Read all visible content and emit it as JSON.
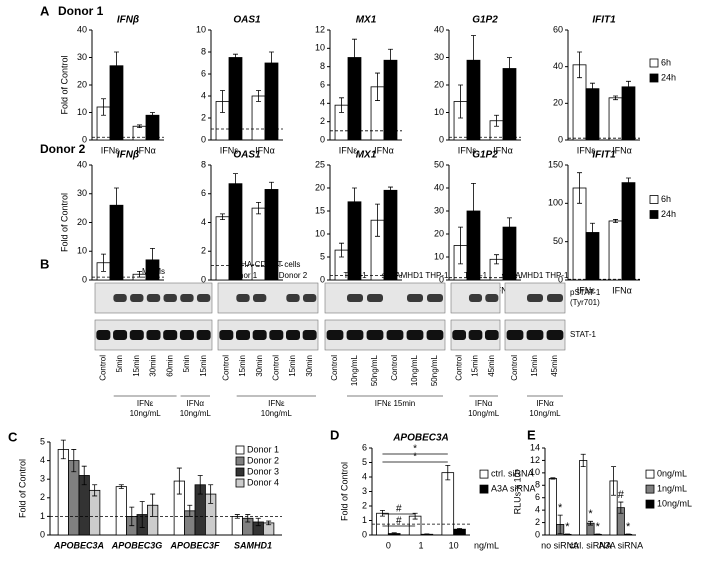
{
  "figure": {
    "panel_letters": [
      "A",
      "B",
      "C",
      "D",
      "E"
    ],
    "donors": [
      "Donor 1",
      "Donor 2"
    ]
  },
  "blot": {
    "row_labels": [
      "pSTAT-1",
      "(Tyr701)",
      "STAT-1"
    ],
    "panels": [
      {
        "title": "MDMs",
        "subgroups": [],
        "lanes": [
          "Control",
          "5min",
          "15min",
          "30min",
          "60min",
          "5min",
          "15min"
        ],
        "groups": [
          [
            "IFNε",
            "10ng/mL"
          ],
          [
            "IFNα",
            "10ng/mL"
          ]
        ]
      },
      {
        "title": "PHA-CD4+ T cells",
        "subgroups": [
          "Donor 1",
          "Donor 2"
        ],
        "lanes": [
          "Control",
          "15min",
          "30min",
          "Control",
          "15min",
          "30min"
        ],
        "groups": [
          [
            "IFNε",
            "10ng/mL"
          ]
        ]
      },
      {
        "title": "",
        "subgroups": [
          "THP-1",
          "shSAMHD1 THP-1"
        ],
        "lanes": [
          "Control",
          "10ng/mL",
          "50ng/mL",
          "Control",
          "10ng/mL",
          "50ng/mL"
        ],
        "groups": [
          [
            "IFNε 15min"
          ]
        ]
      },
      {
        "title": "",
        "subgroups": [
          "THP-1"
        ],
        "lanes": [
          "Control",
          "15min",
          "45min"
        ],
        "groups": [
          [
            "IFNα",
            "10ng/mL"
          ]
        ]
      },
      {
        "title": "",
        "subgroups": [
          "shSAMHD1 THP-1"
        ],
        "lanes": [
          "Control",
          "15min",
          "45min"
        ],
        "groups": [
          [
            "IFNα",
            "10ng/mL"
          ]
        ]
      }
    ]
  },
  "chart_data": [
    {
      "type": "bar",
      "title": "IFNβ",
      "ylabel": "Fold of Control",
      "categories": [
        "IFNε",
        "IFNα"
      ],
      "ylim": [
        0,
        40
      ],
      "yticks": [
        0,
        10,
        20,
        30,
        40
      ],
      "reference_line": 1,
      "series": [
        {
          "name": "6h",
          "color": "#ffffff",
          "values": [
            12,
            5
          ],
          "errors": [
            3,
            0.5
          ]
        },
        {
          "name": "24h",
          "color": "#000000",
          "values": [
            27,
            9
          ],
          "errors": [
            5,
            1
          ]
        }
      ]
    },
    {
      "type": "bar",
      "title": "OAS1",
      "categories": [
        "IFNε",
        "IFNα"
      ],
      "ylim": [
        0,
        10
      ],
      "yticks": [
        0,
        2,
        4,
        6,
        8,
        10
      ],
      "reference_line": 1,
      "series": [
        {
          "name": "6h",
          "color": "#ffffff",
          "values": [
            3.5,
            4
          ],
          "errors": [
            1,
            0.5
          ]
        },
        {
          "name": "24h",
          "color": "#000000",
          "values": [
            7.5,
            7
          ],
          "errors": [
            0.3,
            1
          ]
        }
      ]
    },
    {
      "type": "bar",
      "title": "MX1",
      "categories": [
        "IFNε",
        "IFNα"
      ],
      "ylim": [
        0,
        12
      ],
      "yticks": [
        0,
        2,
        4,
        6,
        8,
        10,
        12
      ],
      "reference_line": 1,
      "series": [
        {
          "name": "6h",
          "color": "#ffffff",
          "values": [
            3.8,
            5.8
          ],
          "errors": [
            0.8,
            1.5
          ]
        },
        {
          "name": "24h",
          "color": "#000000",
          "values": [
            9,
            8.7
          ],
          "errors": [
            2,
            1.2
          ]
        }
      ]
    },
    {
      "type": "bar",
      "title": "G1P2",
      "categories": [
        "IFNε",
        "IFNα"
      ],
      "ylim": [
        0,
        40
      ],
      "yticks": [
        0,
        10,
        20,
        30,
        40
      ],
      "reference_line": 1,
      "series": [
        {
          "name": "6h",
          "color": "#ffffff",
          "values": [
            14,
            7
          ],
          "errors": [
            6,
            2
          ]
        },
        {
          "name": "24h",
          "color": "#000000",
          "values": [
            29,
            26
          ],
          "errors": [
            9,
            4
          ]
        }
      ]
    },
    {
      "type": "bar",
      "title": "IFIT1",
      "categories": [
        "IFNε",
        "IFNα"
      ],
      "ylim": [
        0,
        60
      ],
      "yticks": [
        0,
        20,
        40,
        60
      ],
      "reference_line": 1,
      "legend": "right",
      "series": [
        {
          "name": "6h",
          "color": "#ffffff",
          "values": [
            41,
            23
          ],
          "errors": [
            7,
            1
          ]
        },
        {
          "name": "24h",
          "color": "#000000",
          "values": [
            28,
            29
          ],
          "errors": [
            3,
            3
          ]
        }
      ]
    },
    {
      "type": "bar",
      "title": "IFNβ",
      "ylabel": "Fold of Control",
      "categories": [
        "IFNε",
        "IFNα"
      ],
      "ylim": [
        0,
        40
      ],
      "yticks": [
        0,
        10,
        20,
        30,
        40
      ],
      "reference_line": 1,
      "series": [
        {
          "name": "6h",
          "color": "#ffffff",
          "values": [
            6,
            2
          ],
          "errors": [
            3,
            1
          ]
        },
        {
          "name": "24h",
          "color": "#000000",
          "values": [
            26,
            7
          ],
          "errors": [
            6,
            4
          ]
        }
      ]
    },
    {
      "type": "bar",
      "title": "OAS1",
      "categories": [
        "IFNε",
        "IFNα"
      ],
      "ylim": [
        0,
        8
      ],
      "yticks": [
        0,
        2,
        4,
        6,
        8
      ],
      "reference_line": 1,
      "series": [
        {
          "name": "6h",
          "color": "#ffffff",
          "values": [
            4.4,
            5
          ],
          "errors": [
            0.2,
            0.4
          ]
        },
        {
          "name": "24h",
          "color": "#000000",
          "values": [
            6.7,
            6.3
          ],
          "errors": [
            0.7,
            0.5
          ]
        }
      ]
    },
    {
      "type": "bar",
      "title": "MX1",
      "categories": [
        "IFNε",
        "IFNα"
      ],
      "ylim": [
        0,
        25
      ],
      "yticks": [
        0,
        5,
        10,
        15,
        20,
        25
      ],
      "reference_line": 1,
      "series": [
        {
          "name": "6h",
          "color": "#ffffff",
          "values": [
            6.5,
            13
          ],
          "errors": [
            1.5,
            3.5
          ]
        },
        {
          "name": "24h",
          "color": "#000000",
          "values": [
            17,
            19.5
          ],
          "errors": [
            3,
            0.7
          ]
        }
      ]
    },
    {
      "type": "bar",
      "title": "G1P2",
      "categories": [
        "IFNε",
        "IFNα"
      ],
      "ylim": [
        0,
        50
      ],
      "yticks": [
        0,
        10,
        20,
        30,
        40,
        50
      ],
      "reference_line": 1,
      "series": [
        {
          "name": "6h",
          "color": "#ffffff",
          "values": [
            15,
            9
          ],
          "errors": [
            8,
            2
          ]
        },
        {
          "name": "24h",
          "color": "#000000",
          "values": [
            30,
            23
          ],
          "errors": [
            12,
            4
          ]
        }
      ]
    },
    {
      "type": "bar",
      "title": "IFIT1",
      "categories": [
        "IFNε",
        "IFNα"
      ],
      "ylim": [
        0,
        150
      ],
      "yticks": [
        0,
        50,
        100,
        150
      ],
      "reference_line": 1,
      "legend": "right",
      "series": [
        {
          "name": "6h",
          "color": "#ffffff",
          "values": [
            120,
            77
          ],
          "errors": [
            20,
            2
          ]
        },
        {
          "name": "24h",
          "color": "#000000",
          "values": [
            62,
            127
          ],
          "errors": [
            12,
            6
          ]
        }
      ]
    },
    {
      "type": "bar",
      "ylabel": "Fold of Control",
      "categories": [
        "APOBEC3A",
        "APOBEC3G",
        "APOBEC3F",
        "SAMHD1"
      ],
      "ylim": [
        0,
        5
      ],
      "yticks": [
        0,
        1,
        2,
        3,
        4,
        5
      ],
      "reference_line": 1,
      "legend": "upper right",
      "series": [
        {
          "name": "Donor 1",
          "color": "#ffffff",
          "values": [
            4.6,
            2.6,
            2.9,
            1.0
          ],
          "errors": [
            0.5,
            0.1,
            0.7,
            0.1
          ]
        },
        {
          "name": "Donor 2",
          "color": "#808080",
          "values": [
            4.0,
            1.0,
            1.3,
            0.9
          ],
          "errors": [
            0.6,
            0.5,
            0.3,
            0.2
          ]
        },
        {
          "name": "Donor 3",
          "color": "#333333",
          "values": [
            3.2,
            1.1,
            2.7,
            0.7
          ],
          "errors": [
            0.5,
            0.7,
            0.5,
            0.2
          ]
        },
        {
          "name": "Donor 4",
          "color": "#cccccc",
          "values": [
            2.4,
            1.6,
            2.2,
            0.65
          ],
          "errors": [
            0.3,
            0.6,
            0.5,
            0.1
          ]
        }
      ]
    },
    {
      "type": "bar",
      "title": "APOBEC3A",
      "ylabel": "Fold of Control",
      "xlabel": "ng/mL",
      "categories": [
        "0",
        "1",
        "10"
      ],
      "ylim": [
        0,
        6
      ],
      "yticks": [
        0,
        1,
        2,
        3,
        4,
        5,
        6
      ],
      "reference_line": 0.75,
      "legend": "right",
      "series": [
        {
          "name": "ctrl. siRNA",
          "color": "#ffffff",
          "values": [
            1.5,
            1.3,
            4.3
          ],
          "errors": [
            0.2,
            0.2,
            0.5
          ]
        },
        {
          "name": "A3A siRNA",
          "color": "#000000",
          "values": [
            0.1,
            0.05,
            0.4
          ],
          "errors": [
            0.05,
            0.03,
            0.05
          ]
        }
      ],
      "brackets": [
        {
          "text": "#",
          "from": "0",
          "to": "1"
        },
        {
          "text": "#",
          "from": "0",
          "to": "1"
        },
        {
          "text": "*",
          "from": "0",
          "to": "10"
        },
        {
          "text": "*",
          "from": "0",
          "to": "10"
        }
      ]
    },
    {
      "type": "bar",
      "ylabel": "RLUs x 10⁵",
      "categories": [
        "no siRNA",
        "ctrl. siRNA",
        "A3A siRNA"
      ],
      "ylim": [
        0,
        14
      ],
      "yticks": [
        0,
        2,
        4,
        6,
        8,
        10,
        12,
        14
      ],
      "legend": "right",
      "series": [
        {
          "name": "0ng/mL",
          "color": "#ffffff",
          "values": [
            9.1,
            12,
            8.7
          ],
          "errors": [
            0.1,
            1,
            2.3
          ]
        },
        {
          "name": "1ng/mL",
          "color": "#808080",
          "values": [
            1.7,
            1.9,
            4.4
          ],
          "errors": [
            1.5,
            0.3,
            0.9
          ]
        },
        {
          "name": "10ng/mL",
          "color": "#000000",
          "values": [
            0.1,
            0.1,
            0.1
          ],
          "errors": [
            0.05,
            0.05,
            0.05
          ]
        }
      ],
      "annotations": [
        {
          "text": "*",
          "category": "no siRNA",
          "series": "1ng/mL"
        },
        {
          "text": "*",
          "category": "no siRNA",
          "series": "10ng/mL"
        },
        {
          "text": "*",
          "category": "ctrl. siRNA",
          "series": "1ng/mL"
        },
        {
          "text": "*",
          "category": "ctrl. siRNA",
          "series": "10ng/mL"
        },
        {
          "text": "#",
          "category": "A3A siRNA",
          "series": "1ng/mL"
        },
        {
          "text": "*",
          "category": "A3A siRNA",
          "series": "10ng/mL"
        }
      ]
    }
  ]
}
